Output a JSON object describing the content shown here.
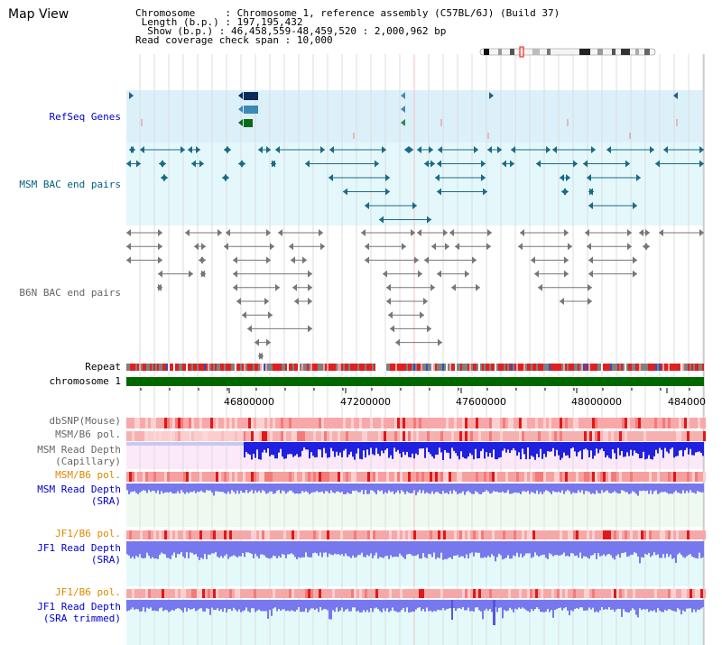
{
  "title": "Map View",
  "info": {
    "chromosome_key": "Chromosome",
    "chromosome_val": "Chromosome 1, reference assembly (C57BL/6J) (Build 37)",
    "length_key": "Length (b.p.)",
    "length_val": "197,195,432",
    "show_key": "Show (b.p.)",
    "show_val": "46,458,559-48,459,520 : 2,000,962 bp",
    "read_key": "Read coverage check span",
    "read_val": "10,000"
  },
  "tracks": {
    "refseq": "RefSeq Genes",
    "msm_bac": "MSM BAC end pairs",
    "b6n_bac": "B6N BAC end pairs",
    "repeat": "Repeat",
    "chromosome": "chromosome 1",
    "dbsnp": "dbSNP(Mouse)",
    "msm_b6_pol_1": "MSM/B6 pol.",
    "msm_depth_cap_1": "MSM Read Depth",
    "msm_depth_cap_2": "(Capillary)",
    "msm_b6_pol_2": "MSM/B6 pol.",
    "msm_depth_sra_1": "MSM Read Depth",
    "msm_depth_sra_2": "(SRA)",
    "jf1_b6_pol_1": "JF1/B6 pol.",
    "jf1_depth_sra_1": "JF1 Read Depth",
    "jf1_depth_sra_2": "(SRA)",
    "jf1_b6_pol_2": "JF1/B6 pol.",
    "jf1_depth_trim_1": "JF1 Read Depth",
    "jf1_depth_trim_2": "(SRA trimmed)"
  },
  "axis": {
    "ticks": [
      "46800000",
      "47200000",
      "47600000",
      "48000000",
      "484000"
    ]
  },
  "colors": {
    "refseq_bg": "#dcf0fa",
    "msm_bg": "#e4f8fc",
    "b6n_bg": "#ffffff",
    "chrom_bar": "#006600",
    "depth_blue": "#2020e0",
    "sra_blue": "#7777ee",
    "pol_red": "#f6a0a0",
    "msm_bac_line": "#1a6a88",
    "b6n_line": "#777777"
  },
  "icons": [
    "chromosome-ideogram",
    "gene-arrow-icon",
    "bac-end-arrow-icon"
  ]
}
